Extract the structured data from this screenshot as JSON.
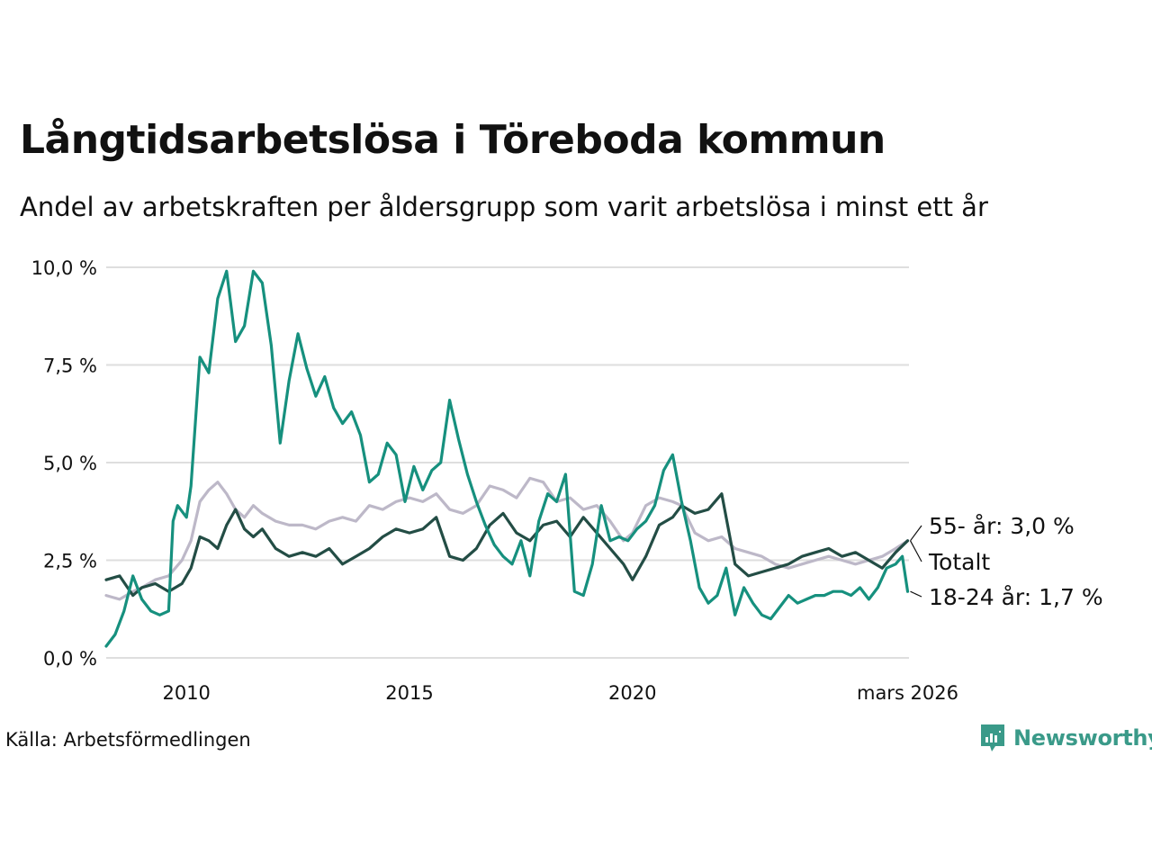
{
  "header": {
    "title": "Långtidsarbetslösa i Töreboda kommun",
    "subtitle": "Andel av arbetskraften per åldersgrupp som varit arbetslösa i minst ett år"
  },
  "footer": {
    "source": "Källa: Arbetsförmedlingen",
    "brand": "Newsworthy",
    "brand_icon": "newsworthy-logo-icon"
  },
  "colors": {
    "youth": "#16907e",
    "total": "#234d45",
    "older": "#bdb8c8",
    "grid": "#dedede",
    "brand": "#3a9a89"
  },
  "chart_data": {
    "type": "line",
    "title": "Långtidsarbetslösa i Töreboda kommun",
    "xlabel": "",
    "ylabel": "",
    "xlim": [
      2008.2,
      2026.2
    ],
    "ylim": [
      0,
      10
    ],
    "grid": true,
    "y_ticks": [
      {
        "value": 0,
        "label": "0,0 %"
      },
      {
        "value": 2.5,
        "label": "2,5 %"
      },
      {
        "value": 5,
        "label": "5,0 %"
      },
      {
        "value": 7.5,
        "label": "7,5 %"
      },
      {
        "value": 10,
        "label": "10,0 %"
      }
    ],
    "x_ticks": [
      {
        "value": 2010,
        "label": "2010"
      },
      {
        "value": 2015,
        "label": "2015"
      },
      {
        "value": 2020,
        "label": "2020"
      },
      {
        "value": 2026.17,
        "label": "mars 2026"
      }
    ],
    "series": [
      {
        "name": "55- år",
        "key": "older",
        "end_label": "55- år: 3,0 %",
        "x": [
          2008.2,
          2008.5,
          2008.8,
          2009.0,
          2009.3,
          2009.6,
          2009.9,
          2010.1,
          2010.3,
          2010.5,
          2010.7,
          2010.9,
          2011.1,
          2011.3,
          2011.5,
          2011.7,
          2012.0,
          2012.3,
          2012.6,
          2012.9,
          2013.2,
          2013.5,
          2013.8,
          2014.1,
          2014.4,
          2014.7,
          2015.0,
          2015.3,
          2015.6,
          2015.9,
          2016.2,
          2016.5,
          2016.8,
          2017.1,
          2017.4,
          2017.7,
          2018.0,
          2018.3,
          2018.6,
          2018.9,
          2019.2,
          2019.5,
          2019.8,
          2020.0,
          2020.3,
          2020.6,
          2020.9,
          2021.1,
          2021.4,
          2021.7,
          2022.0,
          2022.3,
          2022.6,
          2022.9,
          2023.2,
          2023.5,
          2023.8,
          2024.1,
          2024.4,
          2024.7,
          2025.0,
          2025.3,
          2025.6,
          2025.9,
          2026.17
        ],
        "values": [
          1.6,
          1.5,
          1.7,
          1.8,
          2.0,
          2.1,
          2.5,
          3.0,
          4.0,
          4.3,
          4.5,
          4.2,
          3.8,
          3.6,
          3.9,
          3.7,
          3.5,
          3.4,
          3.4,
          3.3,
          3.5,
          3.6,
          3.5,
          3.9,
          3.8,
          4.0,
          4.1,
          4.0,
          4.2,
          3.8,
          3.7,
          3.9,
          4.4,
          4.3,
          4.1,
          4.6,
          4.5,
          4.0,
          4.1,
          3.8,
          3.9,
          3.5,
          3.0,
          3.2,
          3.9,
          4.1,
          4.0,
          3.9,
          3.2,
          3.0,
          3.1,
          2.8,
          2.7,
          2.6,
          2.4,
          2.3,
          2.4,
          2.5,
          2.6,
          2.5,
          2.4,
          2.5,
          2.6,
          2.8,
          3.0
        ]
      },
      {
        "name": "Totalt",
        "key": "total",
        "end_label": "Totalt",
        "x": [
          2008.2,
          2008.5,
          2008.8,
          2009.0,
          2009.3,
          2009.6,
          2009.9,
          2010.1,
          2010.3,
          2010.5,
          2010.7,
          2010.9,
          2011.1,
          2011.3,
          2011.5,
          2011.7,
          2012.0,
          2012.3,
          2012.6,
          2012.9,
          2013.2,
          2013.5,
          2013.8,
          2014.1,
          2014.4,
          2014.7,
          2015.0,
          2015.3,
          2015.6,
          2015.9,
          2016.2,
          2016.5,
          2016.8,
          2017.1,
          2017.4,
          2017.7,
          2018.0,
          2018.3,
          2018.6,
          2018.9,
          2019.2,
          2019.5,
          2019.8,
          2020.0,
          2020.3,
          2020.6,
          2020.9,
          2021.1,
          2021.4,
          2021.7,
          2022.0,
          2022.3,
          2022.6,
          2022.9,
          2023.2,
          2023.5,
          2023.8,
          2024.1,
          2024.4,
          2024.7,
          2025.0,
          2025.3,
          2025.6,
          2025.9,
          2026.17
        ],
        "values": [
          2.0,
          2.1,
          1.6,
          1.8,
          1.9,
          1.7,
          1.9,
          2.3,
          3.1,
          3.0,
          2.8,
          3.4,
          3.8,
          3.3,
          3.1,
          3.3,
          2.8,
          2.6,
          2.7,
          2.6,
          2.8,
          2.4,
          2.6,
          2.8,
          3.1,
          3.3,
          3.2,
          3.3,
          3.6,
          2.6,
          2.5,
          2.8,
          3.4,
          3.7,
          3.2,
          3.0,
          3.4,
          3.5,
          3.1,
          3.6,
          3.2,
          2.8,
          2.4,
          2.0,
          2.6,
          3.4,
          3.6,
          3.9,
          3.7,
          3.8,
          4.2,
          2.4,
          2.1,
          2.2,
          2.3,
          2.4,
          2.6,
          2.7,
          2.8,
          2.6,
          2.7,
          2.5,
          2.3,
          2.7,
          3.0
        ]
      },
      {
        "name": "18-24 år",
        "key": "youth",
        "end_label": "18-24 år: 1,7 %",
        "x": [
          2008.2,
          2008.4,
          2008.6,
          2008.8,
          2009.0,
          2009.2,
          2009.4,
          2009.6,
          2009.7,
          2009.8,
          2010.0,
          2010.1,
          2010.3,
          2010.5,
          2010.7,
          2010.9,
          2011.1,
          2011.3,
          2011.5,
          2011.7,
          2011.9,
          2012.1,
          2012.3,
          2012.5,
          2012.7,
          2012.9,
          2013.1,
          2013.3,
          2013.5,
          2013.7,
          2013.9,
          2014.1,
          2014.3,
          2014.5,
          2014.7,
          2014.9,
          2015.1,
          2015.3,
          2015.5,
          2015.7,
          2015.9,
          2016.1,
          2016.3,
          2016.5,
          2016.7,
          2016.9,
          2017.1,
          2017.3,
          2017.5,
          2017.7,
          2017.9,
          2018.1,
          2018.3,
          2018.5,
          2018.7,
          2018.9,
          2019.1,
          2019.3,
          2019.5,
          2019.7,
          2019.9,
          2020.1,
          2020.3,
          2020.5,
          2020.7,
          2020.9,
          2021.1,
          2021.3,
          2021.5,
          2021.7,
          2021.9,
          2022.1,
          2022.3,
          2022.5,
          2022.7,
          2022.9,
          2023.1,
          2023.3,
          2023.5,
          2023.7,
          2023.9,
          2024.1,
          2024.3,
          2024.5,
          2024.7,
          2024.9,
          2025.1,
          2025.3,
          2025.5,
          2025.7,
          2025.9,
          2026.05,
          2026.17
        ],
        "values": [
          0.3,
          0.6,
          1.2,
          2.1,
          1.5,
          1.2,
          1.1,
          1.2,
          3.5,
          3.9,
          3.6,
          4.4,
          7.7,
          7.3,
          9.2,
          9.9,
          8.1,
          8.5,
          9.9,
          9.6,
          8.0,
          5.5,
          7.1,
          8.3,
          7.4,
          6.7,
          7.2,
          6.4,
          6.0,
          6.3,
          5.7,
          4.5,
          4.7,
          5.5,
          5.2,
          4.0,
          4.9,
          4.3,
          4.8,
          5.0,
          6.6,
          5.6,
          4.7,
          4.0,
          3.4,
          2.9,
          2.6,
          2.4,
          3.0,
          2.1,
          3.5,
          4.2,
          4.0,
          4.7,
          1.7,
          1.6,
          2.4,
          3.9,
          3.0,
          3.1,
          3.0,
          3.3,
          3.5,
          3.9,
          4.8,
          5.2,
          4.0,
          3.0,
          1.8,
          1.4,
          1.6,
          2.3,
          1.1,
          1.8,
          1.4,
          1.1,
          1.0,
          1.3,
          1.6,
          1.4,
          1.5,
          1.6,
          1.6,
          1.7,
          1.7,
          1.6,
          1.8,
          1.5,
          1.8,
          2.3,
          2.4,
          2.6,
          1.7
        ]
      }
    ]
  }
}
